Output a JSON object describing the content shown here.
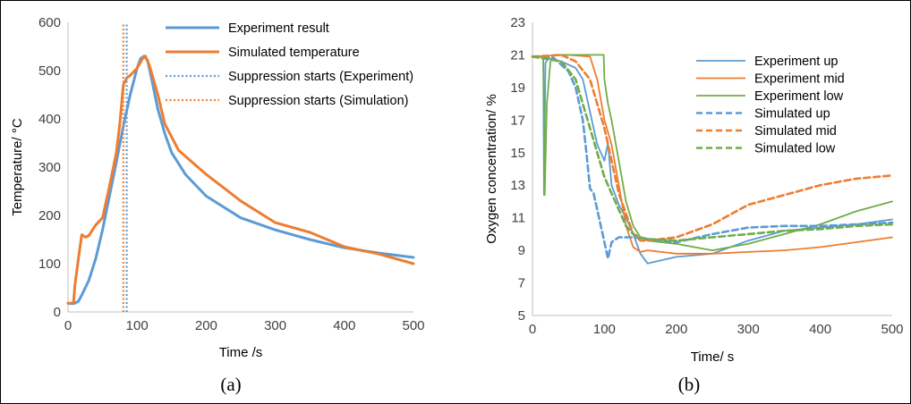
{
  "colors": {
    "blue": "#5b9bd5",
    "orange": "#ed7d31",
    "green": "#70ad47"
  },
  "chart_data": [
    {
      "type": "line",
      "caption": "(a)",
      "xlabel": "Time /s",
      "ylabel": "Temperature/ °C",
      "xlim": [
        0,
        500
      ],
      "ylim": [
        0,
        600
      ],
      "xticks": [
        "0",
        "100",
        "200",
        "300",
        "400",
        "500"
      ],
      "yticks": [
        "0",
        "100",
        "200",
        "300",
        "400",
        "500",
        "600"
      ],
      "grid": false,
      "legend_position": "top-right",
      "series": [
        {
          "name": "Experiment result",
          "color": "#5b9bd5",
          "style": "solid",
          "points": [
            [
              0,
              18
            ],
            [
              6,
              17
            ],
            [
              10,
              18
            ],
            [
              15,
              22
            ],
            [
              20,
              35
            ],
            [
              30,
              65
            ],
            [
              40,
              110
            ],
            [
              50,
              170
            ],
            [
              60,
              240
            ],
            [
              70,
              310
            ],
            [
              80,
              385
            ],
            [
              90,
              450
            ],
            [
              100,
              505
            ],
            [
              105,
              525
            ],
            [
              110,
              530
            ],
            [
              115,
              522
            ],
            [
              120,
              490
            ],
            [
              130,
              420
            ],
            [
              140,
              370
            ],
            [
              150,
              330
            ],
            [
              170,
              285
            ],
            [
              200,
              240
            ],
            [
              250,
              195
            ],
            [
              300,
              170
            ],
            [
              350,
              150
            ],
            [
              400,
              133
            ],
            [
              450,
              122
            ],
            [
              500,
              113
            ]
          ]
        },
        {
          "name": "Simulated temperature",
          "color": "#ed7d31",
          "style": "solid",
          "points": [
            [
              0,
              18
            ],
            [
              5,
              18
            ],
            [
              8,
              20
            ],
            [
              10,
              55
            ],
            [
              15,
              110
            ],
            [
              20,
              160
            ],
            [
              25,
              155
            ],
            [
              30,
              158
            ],
            [
              40,
              180
            ],
            [
              50,
              195
            ],
            [
              60,
              260
            ],
            [
              70,
              330
            ],
            [
              75,
              390
            ],
            [
              80,
              470
            ],
            [
              85,
              485
            ],
            [
              90,
              490
            ],
            [
              100,
              505
            ],
            [
              108,
              525
            ],
            [
              112,
              530
            ],
            [
              118,
              510
            ],
            [
              130,
              450
            ],
            [
              140,
              390
            ],
            [
              160,
              335
            ],
            [
              200,
              285
            ],
            [
              250,
              230
            ],
            [
              300,
              185
            ],
            [
              350,
              165
            ],
            [
              400,
              135
            ],
            [
              450,
              120
            ],
            [
              500,
              100
            ]
          ]
        },
        {
          "name": "Suppression starts (Experiment)",
          "color": "#5b9bd5",
          "style": "dotted",
          "points": [
            [
              85,
              0
            ],
            [
              85,
              600
            ]
          ]
        },
        {
          "name": "Suppression starts (Simulation)",
          "color": "#ed7d31",
          "style": "dotted",
          "points": [
            [
              80,
              0
            ],
            [
              80,
              600
            ]
          ]
        }
      ]
    },
    {
      "type": "line",
      "caption": "(b)",
      "xlabel": "Time/ s",
      "ylabel": "Oxygen concentration/ %",
      "xlim": [
        0,
        500
      ],
      "ylim": [
        5,
        23
      ],
      "xticks": [
        "0",
        "100",
        "200",
        "300",
        "400",
        "500"
      ],
      "yticks": [
        "5",
        "7",
        "9",
        "11",
        "13",
        "15",
        "17",
        "19",
        "21",
        "23"
      ],
      "grid": false,
      "legend_position": "top-right",
      "series": [
        {
          "name": "Experiment up",
          "color": "#5b9bd5",
          "style": "solid",
          "points": [
            [
              0,
              20.9
            ],
            [
              15,
              20.9
            ],
            [
              16,
              12.4
            ],
            [
              18,
              20.5
            ],
            [
              22,
              20.8
            ],
            [
              40,
              20.6
            ],
            [
              60,
              20.2
            ],
            [
              70,
              19.5
            ],
            [
              80,
              17.5
            ],
            [
              90,
              15.5
            ],
            [
              100,
              14.5
            ],
            [
              105,
              15.6
            ],
            [
              110,
              13
            ],
            [
              120,
              11.8
            ],
            [
              130,
              11
            ],
            [
              140,
              10
            ],
            [
              150,
              8.8
            ],
            [
              160,
              8.2
            ],
            [
              200,
              8.6
            ],
            [
              250,
              8.8
            ],
            [
              300,
              9.6
            ],
            [
              350,
              10.2
            ],
            [
              400,
              10.4
            ],
            [
              450,
              10.6
            ],
            [
              500,
              10.9
            ]
          ]
        },
        {
          "name": "Experiment mid",
          "color": "#ed7d31",
          "style": "solid",
          "points": [
            [
              0,
              20.9
            ],
            [
              50,
              21
            ],
            [
              80,
              20.9
            ],
            [
              90,
              19.5
            ],
            [
              100,
              17
            ],
            [
              110,
              15.5
            ],
            [
              120,
              13
            ],
            [
              130,
              10.5
            ],
            [
              140,
              9.2
            ],
            [
              150,
              8.9
            ],
            [
              160,
              9
            ],
            [
              200,
              8.8
            ],
            [
              250,
              8.8
            ],
            [
              300,
              8.9
            ],
            [
              350,
              9.0
            ],
            [
              400,
              9.2
            ],
            [
              450,
              9.5
            ],
            [
              500,
              9.8
            ]
          ]
        },
        {
          "name": "Experiment low",
          "color": "#70ad47",
          "style": "solid",
          "points": [
            [
              0,
              20.9
            ],
            [
              15,
              20.9
            ],
            [
              17,
              12.4
            ],
            [
              20,
              18
            ],
            [
              25,
              20.6
            ],
            [
              30,
              21
            ],
            [
              60,
              21
            ],
            [
              90,
              21
            ],
            [
              99,
              21
            ],
            [
              100,
              19.5
            ],
            [
              105,
              18
            ],
            [
              110,
              17
            ],
            [
              120,
              14.5
            ],
            [
              130,
              12
            ],
            [
              140,
              10.5
            ],
            [
              150,
              9.8
            ],
            [
              160,
              9.6
            ],
            [
              200,
              9.4
            ],
            [
              250,
              9.0
            ],
            [
              300,
              9.4
            ],
            [
              350,
              10.0
            ],
            [
              400,
              10.6
            ],
            [
              450,
              11.4
            ],
            [
              500,
              12.0
            ]
          ]
        },
        {
          "name": "Simulated up",
          "color": "#5b9bd5",
          "style": "dashed",
          "points": [
            [
              0,
              20.9
            ],
            [
              30,
              20.8
            ],
            [
              50,
              20.0
            ],
            [
              60,
              19.0
            ],
            [
              70,
              17.0
            ],
            [
              75,
              15.0
            ],
            [
              80,
              12.8
            ],
            [
              85,
              12.5
            ],
            [
              90,
              11.5
            ],
            [
              100,
              9.5
            ],
            [
              105,
              8.5
            ],
            [
              110,
              9.5
            ],
            [
              120,
              9.8
            ],
            [
              140,
              9.8
            ],
            [
              160,
              9.7
            ],
            [
              200,
              9.5
            ],
            [
              250,
              10.0
            ],
            [
              300,
              10.4
            ],
            [
              350,
              10.5
            ],
            [
              400,
              10.5
            ],
            [
              450,
              10.6
            ],
            [
              500,
              10.7
            ]
          ]
        },
        {
          "name": "Simulated mid",
          "color": "#ed7d31",
          "style": "dashed",
          "points": [
            [
              0,
              20.9
            ],
            [
              40,
              21
            ],
            [
              60,
              20.6
            ],
            [
              80,
              19.5
            ],
            [
              100,
              16.5
            ],
            [
              120,
              12.5
            ],
            [
              140,
              10.0
            ],
            [
              150,
              9.6
            ],
            [
              160,
              9.6
            ],
            [
              200,
              9.8
            ],
            [
              250,
              10.6
            ],
            [
              300,
              11.8
            ],
            [
              350,
              12.4
            ],
            [
              400,
              13.0
            ],
            [
              450,
              13.4
            ],
            [
              500,
              13.6
            ]
          ]
        },
        {
          "name": "Simulated low",
          "color": "#70ad47",
          "style": "dashed",
          "points": [
            [
              0,
              20.9
            ],
            [
              40,
              20.6
            ],
            [
              60,
              19.5
            ],
            [
              80,
              16.5
            ],
            [
              100,
              13.5
            ],
            [
              120,
              11.5
            ],
            [
              130,
              10.5
            ],
            [
              140,
              10.0
            ],
            [
              150,
              9.8
            ],
            [
              160,
              9.7
            ],
            [
              200,
              9.6
            ],
            [
              250,
              9.8
            ],
            [
              300,
              10.0
            ],
            [
              350,
              10.2
            ],
            [
              400,
              10.3
            ],
            [
              450,
              10.5
            ],
            [
              500,
              10.6
            ]
          ]
        }
      ]
    }
  ]
}
